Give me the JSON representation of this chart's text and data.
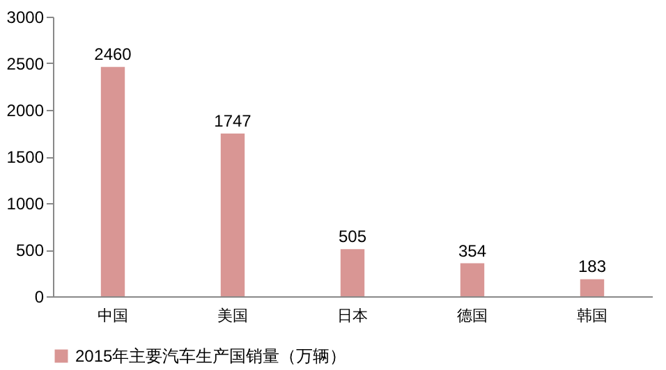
{
  "chart_data": {
    "type": "bar",
    "categories": [
      "中国",
      "美国",
      "日本",
      "德国",
      "韩国"
    ],
    "series": [
      {
        "name": "2015年主要汽车生产国销量（万辆）",
        "color": "#d99694",
        "values": [
          2460,
          1747,
          505,
          354,
          183
        ]
      }
    ],
    "ylim": [
      0,
      3000
    ],
    "yticks": [
      0,
      500,
      1000,
      1500,
      2000,
      2500,
      3000
    ],
    "grid": false,
    "legend": "bottom",
    "data_labels": true
  }
}
